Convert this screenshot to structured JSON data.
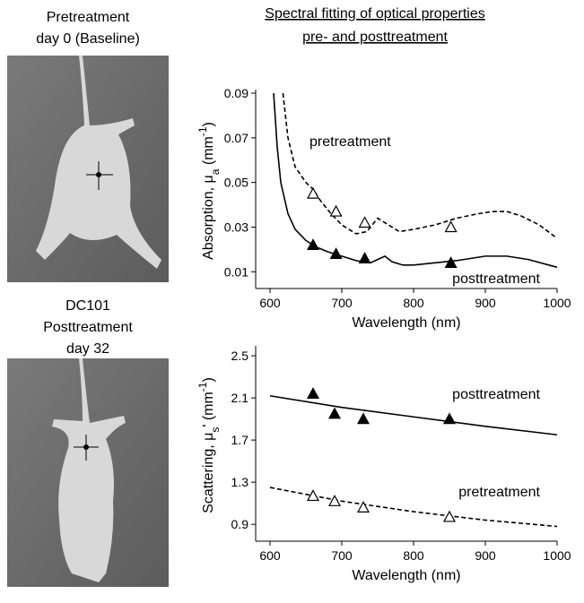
{
  "title": [
    "Spectral fitting of optical properties",
    "pre- and posttreatment"
  ],
  "photos": [
    {
      "label": [
        "Pretreatment",
        "day 0 (Baseline)"
      ]
    },
    {
      "label": [
        "DC101",
        "Posttreatment",
        "day 32"
      ]
    }
  ],
  "chart_data": [
    {
      "type": "line",
      "xlabel": "Wavelength (nm)",
      "ylabel": [
        "Absorption, μ",
        "a",
        " (mm",
        "-1",
        ")"
      ],
      "xlim": [
        580,
        1000
      ],
      "xticks": [
        600,
        700,
        800,
        900,
        1000
      ],
      "ylim": [
        0.0025,
        0.09
      ],
      "yticks": [
        0.01,
        0.03,
        0.05,
        0.07,
        0.09
      ],
      "series": [
        {
          "name": "pretreatment",
          "color": "#000000",
          "dashed": true,
          "marker": "open",
          "x": [
            618,
            625,
            635,
            650,
            660,
            670,
            685,
            700,
            720,
            735,
            750,
            765,
            780,
            800,
            830,
            860,
            890,
            910,
            930,
            950,
            975,
            1000
          ],
          "values": [
            0.09,
            0.07,
            0.057,
            0.05,
            0.047,
            0.042,
            0.036,
            0.031,
            0.027,
            0.028,
            0.034,
            0.031,
            0.028,
            0.029,
            0.031,
            0.034,
            0.036,
            0.037,
            0.037,
            0.035,
            0.031,
            0.025
          ],
          "measured_x": [
            660,
            692,
            732,
            852
          ],
          "measured": [
            0.045,
            0.037,
            0.032,
            0.03
          ]
        },
        {
          "name": "posttreatment",
          "color": "#000000",
          "dashed": false,
          "marker": "filled",
          "x": [
            605,
            610,
            615,
            625,
            635,
            650,
            665,
            680,
            700,
            720,
            740,
            750,
            760,
            770,
            785,
            800,
            830,
            860,
            900,
            930,
            960,
            1000
          ],
          "values": [
            0.09,
            0.066,
            0.05,
            0.036,
            0.029,
            0.024,
            0.021,
            0.019,
            0.017,
            0.015,
            0.014,
            0.0155,
            0.017,
            0.0145,
            0.013,
            0.013,
            0.014,
            0.015,
            0.017,
            0.017,
            0.0155,
            0.012
          ],
          "measured_x": [
            660,
            692,
            732,
            852
          ],
          "measured": [
            0.022,
            0.018,
            0.016,
            0.014
          ]
        }
      ]
    },
    {
      "type": "line",
      "xlabel": "Wavelength (nm)",
      "ylabel": [
        "Scattering, μ",
        "s",
        "' (mm",
        "-1",
        ")"
      ],
      "xlim": [
        580,
        1000
      ],
      "xticks": [
        600,
        700,
        800,
        900,
        1000
      ],
      "ylim": [
        0.74,
        2.56
      ],
      "yticks": [
        0.9,
        1.3,
        1.7,
        2.1,
        2.5
      ],
      "series": [
        {
          "name": "posttreatment",
          "color": "#000000",
          "dashed": false,
          "marker": "filled",
          "x": [
            600,
            700,
            800,
            900,
            1000
          ],
          "values": [
            2.12,
            2.01,
            1.92,
            1.83,
            1.75
          ],
          "measured_x": [
            660,
            690,
            730,
            850
          ],
          "measured": [
            2.14,
            1.95,
            1.9,
            1.9
          ]
        },
        {
          "name": "pretreatment",
          "color": "#000000",
          "dashed": true,
          "marker": "open",
          "x": [
            600,
            700,
            800,
            900,
            1000
          ],
          "values": [
            1.25,
            1.12,
            1.02,
            0.94,
            0.88
          ],
          "measured_x": [
            660,
            690,
            730,
            850
          ],
          "measured": [
            1.17,
            1.12,
            1.06,
            0.97
          ]
        }
      ]
    }
  ]
}
